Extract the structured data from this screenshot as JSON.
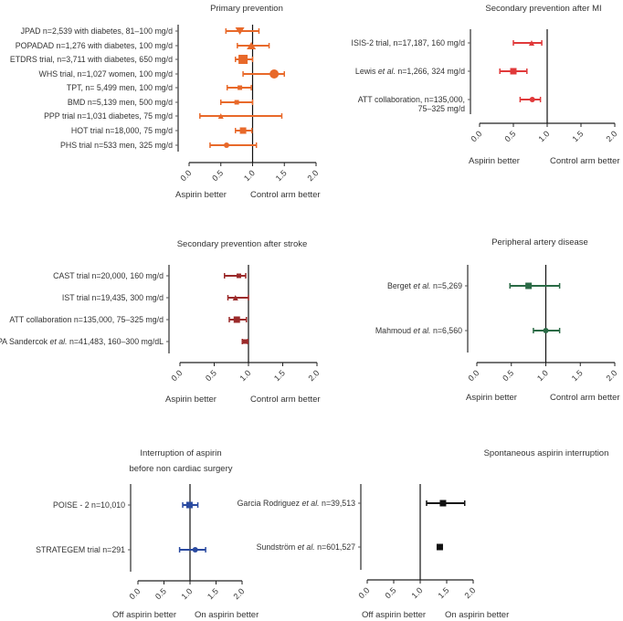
{
  "chart_data": [
    {
      "type": "forest",
      "title": "Primary prevention",
      "color": "#e8692a",
      "xlim": [
        0,
        2
      ],
      "ticks": [
        "0.0",
        "0.5",
        "1.0",
        "1.5",
        "2.0"
      ],
      "tick_values": [
        0,
        0.5,
        1,
        1.5,
        2
      ],
      "reference": 1.0,
      "footer_left": "Aspirin better",
      "footer_right": "Control arm better",
      "rows": [
        {
          "label_pre": "JPAD n=2,539 with diabetes, 81–100 mg/d",
          "marker": "triangle-down",
          "estimate": 0.8,
          "ci": [
            0.58,
            1.1
          ]
        },
        {
          "label_pre": "POPADAD n=1,276 with diabetes, 100 mg/d",
          "marker": "triangle-up",
          "estimate": 0.98,
          "ci": [
            0.76,
            1.26
          ]
        },
        {
          "label_pre": "ETDRS trial, n=3,711 with diabetes, 650 mg/d",
          "marker": "square-large",
          "estimate": 0.85,
          "ci": [
            0.73,
            1.0
          ]
        },
        {
          "label_pre": "WHS trial, n=1,027 women, 100 mg/d",
          "marker": "circle",
          "estimate": 1.34,
          "ci": [
            0.85,
            1.5
          ]
        },
        {
          "label_pre": "TPT, n= 5,499 men, 100 mg/d",
          "marker": "small",
          "estimate": 0.8,
          "ci": [
            0.6,
            0.98
          ]
        },
        {
          "label_pre": "BMD n=5,139 men, 500 mg/d",
          "marker": "small",
          "estimate": 0.75,
          "ci": [
            0.5,
            1.0
          ]
        },
        {
          "label_pre": "PPP trial n=1,031 diabetes, 75 mg/d",
          "marker": "triangle-up-small",
          "estimate": 0.5,
          "ci": [
            0.17,
            1.46
          ]
        },
        {
          "label_pre": "HOT trial n=18,000, 75 mg/d",
          "marker": "square",
          "estimate": 0.85,
          "ci": [
            0.73,
            0.99
          ]
        },
        {
          "label_pre": "PHS trial n=533 men, 325 mg/d",
          "marker": "circle-small",
          "estimate": 0.59,
          "ci": [
            0.33,
            1.06
          ]
        }
      ]
    },
    {
      "type": "forest",
      "title": "Secondary prevention after MI",
      "color": "#e0393a",
      "xlim": [
        0,
        2
      ],
      "ticks": [
        "0.0",
        "0.5",
        "1.0",
        "1.5",
        "2.0"
      ],
      "tick_values": [
        0,
        0.5,
        1,
        1.5,
        2
      ],
      "reference": 1.0,
      "footer_left": "Aspirin better",
      "footer_right": "Control arm better",
      "rows": [
        {
          "label_pre": "ISIS-2 trial, n=17,187, 160 mg/d",
          "marker": "triangle-up-small",
          "estimate": 0.77,
          "ci": [
            0.5,
            0.92
          ]
        },
        {
          "label_pre": "Lewis ",
          "label_italic": "et al.",
          "label_post": " n=1,266, 324 mg/d",
          "marker": "square",
          "estimate": 0.5,
          "ci": [
            0.3,
            0.7
          ]
        },
        {
          "label_pre": "ATT collaboration, n=135,000,",
          "label_line2": "75–325 mg/d",
          "marker": "circle-small",
          "estimate": 0.78,
          "ci": [
            0.6,
            0.9
          ]
        }
      ]
    },
    {
      "type": "forest",
      "title": "Secondary prevention after stroke",
      "color": "#9b2a2a",
      "xlim": [
        0,
        2
      ],
      "ticks": [
        "0.0",
        "0.5",
        "1.0",
        "1.5",
        "2.0"
      ],
      "tick_values": [
        0,
        0.5,
        1,
        1.5,
        2
      ],
      "reference": 1.0,
      "footer_left": "Aspirin better",
      "footer_right": "Control arm better",
      "rows": [
        {
          "label_pre": "CAST trial n=20,000, 160 mg/d",
          "marker": "small",
          "estimate": 0.86,
          "ci": [
            0.65,
            0.96
          ]
        },
        {
          "label_pre": "IST trial n=19,435, 300 mg/d",
          "marker": "triangle-up-small",
          "estimate": 0.81,
          "ci": [
            0.7,
            1.0
          ]
        },
        {
          "label_pre": "ATT collaboration n=135,000, 75–325 mg/d",
          "marker": "square",
          "estimate": 0.83,
          "ci": [
            0.72,
            0.97
          ]
        },
        {
          "label_pre": "PA Sandercok ",
          "label_italic": "et al.",
          "label_post": " n=41,483, 160–300 mg/dL",
          "marker": "small",
          "estimate": 0.95,
          "ci": [
            0.91,
            0.99
          ]
        }
      ]
    },
    {
      "type": "forest",
      "title": "Peripheral artery disease",
      "color": "#2a6a45",
      "xlim": [
        0,
        2
      ],
      "ticks": [
        "0.0",
        "0.5",
        "1.0",
        "1.5",
        "2.0"
      ],
      "tick_values": [
        0,
        0.5,
        1,
        1.5,
        2
      ],
      "reference": 1.0,
      "footer_left": "Aspirin better",
      "footer_right": "Control arm better",
      "rows": [
        {
          "label_pre": "Berget ",
          "label_italic": "et al.",
          "label_post": " n=5,269",
          "marker": "square",
          "estimate": 0.75,
          "ci": [
            0.48,
            1.2
          ]
        },
        {
          "label_pre": "Mahmoud ",
          "label_italic": "et al.",
          "label_post": " n=6,560",
          "marker": "circle-small",
          "estimate": 1.0,
          "ci": [
            0.82,
            1.2
          ]
        }
      ]
    },
    {
      "type": "forest",
      "title": "Interruption of aspirin",
      "title_line2": "before non cardiac surgery",
      "color": "#2a4aa0",
      "xlim": [
        0,
        2
      ],
      "ticks": [
        "0.0",
        "0.5",
        "1.0",
        "1.5",
        "2.0"
      ],
      "tick_values": [
        0,
        0.5,
        1,
        1.5,
        2
      ],
      "reference": 1.0,
      "footer_left": "Off aspirin better",
      "footer_right": "On aspirin better",
      "rows": [
        {
          "label_pre": "POISE - 2 n=10,010",
          "marker": "square",
          "estimate": 0.99,
          "ci": [
            0.86,
            1.15
          ]
        },
        {
          "label_pre": "STRATEGEM trial n=291",
          "marker": "circle-small",
          "estimate": 1.1,
          "ci": [
            0.8,
            1.3
          ]
        }
      ]
    },
    {
      "type": "forest",
      "title": "Spontaneous aspirin interruption",
      "color": "#111111",
      "xlim": [
        0,
        2
      ],
      "ticks": [
        "0.0",
        "0.5",
        "1.0",
        "1.5",
        "2.0"
      ],
      "tick_values": [
        0,
        0.5,
        1,
        1.5,
        2
      ],
      "reference": 1.0,
      "footer_left": "Off aspirin better",
      "footer_right": "On aspirin better",
      "rows": [
        {
          "label_pre": "Garcia Rodriguez ",
          "label_italic": "et al.",
          "label_post": " n=39,513",
          "marker": "square",
          "estimate": 1.43,
          "ci": [
            1.12,
            1.84
          ]
        },
        {
          "label_pre": "Sundström ",
          "label_italic": "et al.",
          "label_post": " n=601,527",
          "marker": "square",
          "estimate": 1.37,
          "ci": [
            1.33,
            1.41
          ]
        }
      ]
    }
  ]
}
